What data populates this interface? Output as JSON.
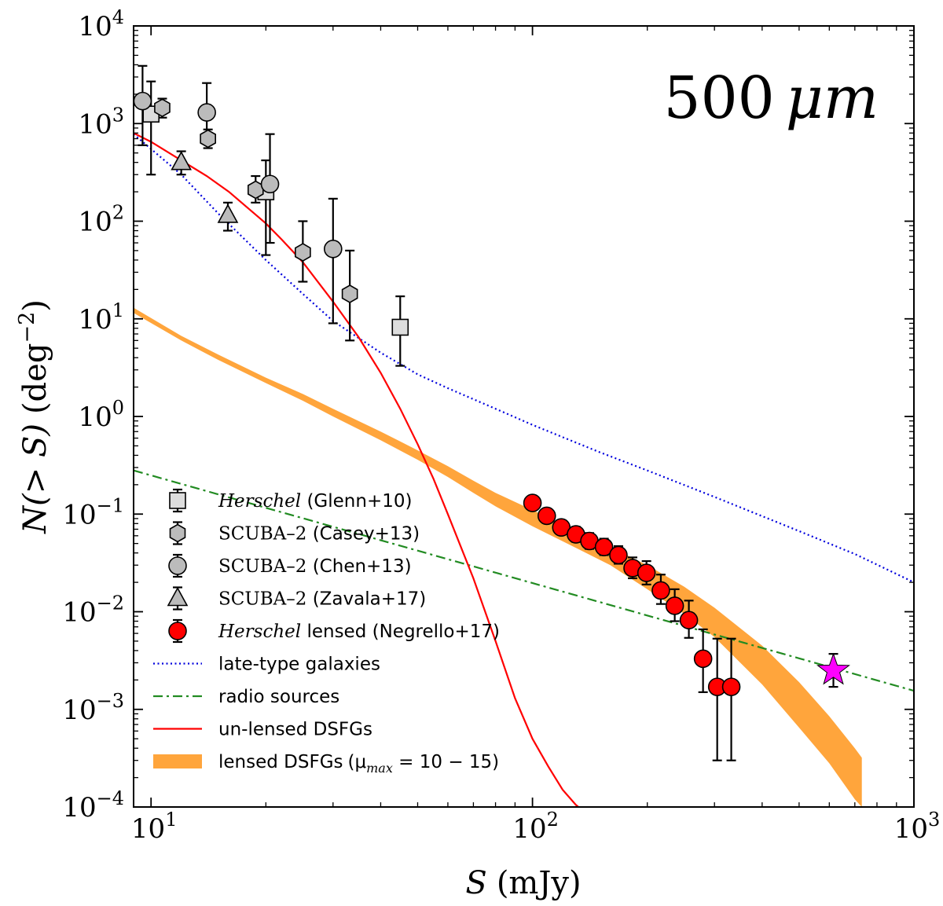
{
  "chart_data": {
    "type": "scatter",
    "title": "",
    "annotation": {
      "value": "500",
      "unit": "μm"
    },
    "xlabel": {
      "var": "S",
      "unit": "(mJy)"
    },
    "ylabel": {
      "var": "N(> S)",
      "unit": "(deg",
      "exp": "−2",
      "close": ")"
    },
    "xscale": "log",
    "yscale": "log",
    "xlim": [
      9,
      1000
    ],
    "ylim": [
      0.0001,
      10000
    ],
    "xticks": [
      {
        "value": 10,
        "base": "10",
        "exp": "1"
      },
      {
        "value": 100,
        "base": "10",
        "exp": "2"
      },
      {
        "value": 1000,
        "base": "10",
        "exp": "3"
      }
    ],
    "yticks": [
      {
        "value": 10000,
        "base": "10",
        "exp": "4"
      },
      {
        "value": 1000,
        "base": "10",
        "exp": "3"
      },
      {
        "value": 100,
        "base": "10",
        "exp": "2"
      },
      {
        "value": 10,
        "base": "10",
        "exp": "1"
      },
      {
        "value": 1,
        "base": "10",
        "exp": "0"
      },
      {
        "value": 0.1,
        "base": "10",
        "exp": "−1"
      },
      {
        "value": 0.01,
        "base": "10",
        "exp": "−2"
      },
      {
        "value": 0.001,
        "base": "10",
        "exp": "−3"
      },
      {
        "value": 0.0001,
        "base": "10",
        "exp": "−4"
      }
    ],
    "legend_position": "lower-left",
    "series": [
      {
        "name": "Herschel (Glenn+10)",
        "kind": "points",
        "marker": "square",
        "color": "#dddddd",
        "points": [
          {
            "x": 10,
            "y": 1250,
            "lo": 300,
            "hi": 2700
          },
          {
            "x": 20,
            "y": 200,
            "lo": 45,
            "hi": 420
          },
          {
            "x": 45,
            "y": 8.2,
            "lo": 3.3,
            "hi": 17
          }
        ]
      },
      {
        "name": "SCUBA–2 (Casey+13)",
        "kind": "points",
        "marker": "hexagon",
        "color": "#bbbbbb",
        "points": [
          {
            "x": 10.7,
            "y": 1450,
            "lo": 1150,
            "hi": 1800
          },
          {
            "x": 14.1,
            "y": 700,
            "lo": 560,
            "hi": 870
          },
          {
            "x": 18.8,
            "y": 210,
            "lo": 155,
            "hi": 290
          },
          {
            "x": 25,
            "y": 48,
            "lo": 24,
            "hi": 100
          },
          {
            "x": 33.2,
            "y": 18,
            "lo": 6,
            "hi": 50
          }
        ]
      },
      {
        "name": "SCUBA–2 (Chen+13)",
        "kind": "points",
        "marker": "circle",
        "color": "#bbbbbb",
        "points": [
          {
            "x": 9.5,
            "y": 1700,
            "lo": 600,
            "hi": 3900
          },
          {
            "x": 14,
            "y": 1300,
            "lo": 750,
            "hi": 2600
          },
          {
            "x": 20.5,
            "y": 240,
            "lo": 60,
            "hi": 780
          },
          {
            "x": 30,
            "y": 52,
            "lo": 9,
            "hi": 170
          }
        ]
      },
      {
        "name": "SCUBA–2 (Zavala+17)",
        "kind": "points",
        "marker": "triangle",
        "color": "#bbbbbb",
        "points": [
          {
            "x": 12,
            "y": 400,
            "lo": 300,
            "hi": 520
          },
          {
            "x": 15.9,
            "y": 115,
            "lo": 80,
            "hi": 155
          }
        ]
      },
      {
        "name": "Herschel lensed (Negrello+17)",
        "kind": "points",
        "marker": "circle",
        "color": "#ff0000",
        "points": [
          {
            "x": 100,
            "y": 0.13
          },
          {
            "x": 109,
            "y": 0.096
          },
          {
            "x": 119,
            "y": 0.073
          },
          {
            "x": 130,
            "y": 0.062,
            "lo": 0.052,
            "hi": 0.074
          },
          {
            "x": 141,
            "y": 0.053,
            "lo": 0.044,
            "hi": 0.064
          },
          {
            "x": 154,
            "y": 0.046,
            "lo": 0.038,
            "hi": 0.056
          },
          {
            "x": 168,
            "y": 0.038,
            "lo": 0.031,
            "hi": 0.047
          },
          {
            "x": 183,
            "y": 0.028,
            "lo": 0.022,
            "hi": 0.036
          },
          {
            "x": 199,
            "y": 0.025,
            "lo": 0.019,
            "hi": 0.033
          },
          {
            "x": 217,
            "y": 0.0165,
            "lo": 0.012,
            "hi": 0.024
          },
          {
            "x": 236,
            "y": 0.0115,
            "lo": 0.008,
            "hi": 0.017
          },
          {
            "x": 257,
            "y": 0.0082,
            "lo": 0.0054,
            "hi": 0.013
          },
          {
            "x": 280,
            "y": 0.0033,
            "lo": 0.0015,
            "hi": 0.0066
          },
          {
            "x": 305,
            "y": 0.0017,
            "lo": 0.0003,
            "hi": 0.0053
          },
          {
            "x": 332,
            "y": 0.0017,
            "lo": 0.0003,
            "hi": 0.0053
          }
        ]
      },
      {
        "name": "late-type galaxies",
        "kind": "line",
        "style": "dotted",
        "color": "#0000dd",
        "x": [
          9,
          12,
          15,
          20,
          25,
          30,
          40,
          50,
          60,
          80,
          100,
          150,
          200,
          300,
          500,
          700,
          1000
        ],
        "y": [
          780,
          300,
          120,
          40,
          18,
          9.5,
          4.5,
          2.7,
          1.95,
          1.2,
          0.82,
          0.43,
          0.28,
          0.15,
          0.067,
          0.039,
          0.02
        ]
      },
      {
        "name": "radio sources",
        "kind": "line",
        "style": "dashdot",
        "color": "#228b22",
        "x": [
          9,
          1000
        ],
        "y": [
          0.28,
          0.00155
        ]
      },
      {
        "name": "un-lensed DSFGs",
        "kind": "line",
        "style": "solid",
        "color": "#ff0000",
        "x": [
          9,
          10,
          12,
          14,
          16,
          18,
          20,
          22,
          25,
          30,
          35,
          40,
          45,
          50,
          55,
          60,
          70,
          80,
          90,
          100,
          110,
          120,
          130,
          132
        ],
        "y": [
          800,
          650,
          420,
          290,
          200,
          135,
          95,
          65,
          38,
          15,
          6.5,
          2.8,
          1.2,
          0.52,
          0.23,
          0.1,
          0.022,
          0.005,
          0.0013,
          0.0005,
          0.00026,
          0.00015,
          0.000105,
          0.0001
        ]
      },
      {
        "name": "lensed DSFGs",
        "name_suffix": "(μ",
        "name_sub": "max",
        "name_tail": " = 10 − 15)",
        "kind": "band",
        "color": "#ffa53c",
        "x": [
          9,
          12,
          15,
          20,
          25,
          30,
          40,
          50,
          60,
          70,
          80,
          100,
          130,
          160,
          200,
          250,
          300,
          400,
          500,
          600,
          700,
          730
        ],
        "lo": [
          11.5,
          6.0,
          3.8,
          2.2,
          1.45,
          1.0,
          0.57,
          0.36,
          0.24,
          0.165,
          0.12,
          0.075,
          0.045,
          0.03,
          0.017,
          0.0095,
          0.0055,
          0.0018,
          0.00065,
          0.00028,
          0.00012,
          0.0001
        ],
        "hi": [
          13,
          6.7,
          4.3,
          2.5,
          1.7,
          1.2,
          0.7,
          0.45,
          0.31,
          0.22,
          0.165,
          0.11,
          0.068,
          0.046,
          0.03,
          0.018,
          0.011,
          0.0045,
          0.0019,
          0.00085,
          0.0004,
          0.00032
        ]
      },
      {
        "name": "star",
        "kind": "points",
        "marker": "star",
        "color": "#ff00ff",
        "points": [
          {
            "x": 615,
            "y": 0.0025,
            "lo": 0.0017,
            "hi": 0.0037
          }
        ]
      }
    ],
    "legend": [
      {
        "series": "Herschel (Glenn+10)",
        "label_ital": "Herschel",
        "label": "(Glenn+10)"
      },
      {
        "series": "SCUBA–2 (Casey+13)",
        "label_serif": "SCUBA–2",
        "label": "(Casey+13)"
      },
      {
        "series": "SCUBA–2 (Chen+13)",
        "label_serif": "SCUBA–2",
        "label": "(Chen+13)"
      },
      {
        "series": "SCUBA–2 (Zavala+17)",
        "label_serif": "SCUBA–2",
        "label": "(Zavala+17)"
      },
      {
        "series": "Herschel lensed (Negrello+17)",
        "label_ital": "Herschel",
        "label": "lensed (Negrello+17)"
      },
      {
        "series": "late-type galaxies",
        "label": "late-type galaxies"
      },
      {
        "series": "radio sources",
        "label": "radio sources"
      },
      {
        "series": "un-lensed DSFGs",
        "label": "un-lensed DSFGs"
      },
      {
        "series": "lensed DSFGs",
        "label": "lensed DSFGs"
      }
    ]
  }
}
